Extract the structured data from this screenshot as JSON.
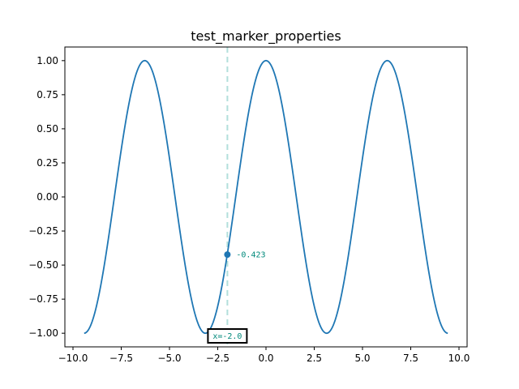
{
  "chart_data": {
    "type": "line",
    "title": "test_marker_properties",
    "xlabel": "",
    "ylabel": "",
    "xlim": [
      -10.42,
      10.42
    ],
    "ylim": [
      -1.1,
      1.1
    ],
    "grid": false,
    "x_ticks": [
      -10.0,
      -7.5,
      -5.0,
      -2.5,
      0.0,
      2.5,
      5.0,
      7.5,
      10.0
    ],
    "x_tick_labels": [
      "−10.0",
      "−7.5",
      "−5.0",
      "−2.5",
      "0.0",
      "2.5",
      "5.0",
      "7.5",
      "10.0"
    ],
    "y_ticks": [
      1.0,
      0.75,
      0.5,
      0.25,
      0.0,
      -0.25,
      -0.5,
      -0.75,
      -1.0
    ],
    "y_tick_labels": [
      "1.00",
      "0.75",
      "0.50",
      "0.25",
      "0.00",
      "−0.25",
      "−0.50",
      "−0.75",
      "−1.00"
    ],
    "series": [
      {
        "function": "cos(x)",
        "x_range": [
          -9.42,
          9.42
        ],
        "color": "#1f77b4"
      }
    ],
    "marker": {
      "x": -2.0,
      "y": -0.423,
      "value_label": "-0.423",
      "x_label": "x=-2.0",
      "color": "#1f77b4",
      "line_color": "#b2dfdb",
      "text_color": "#00897b"
    }
  }
}
